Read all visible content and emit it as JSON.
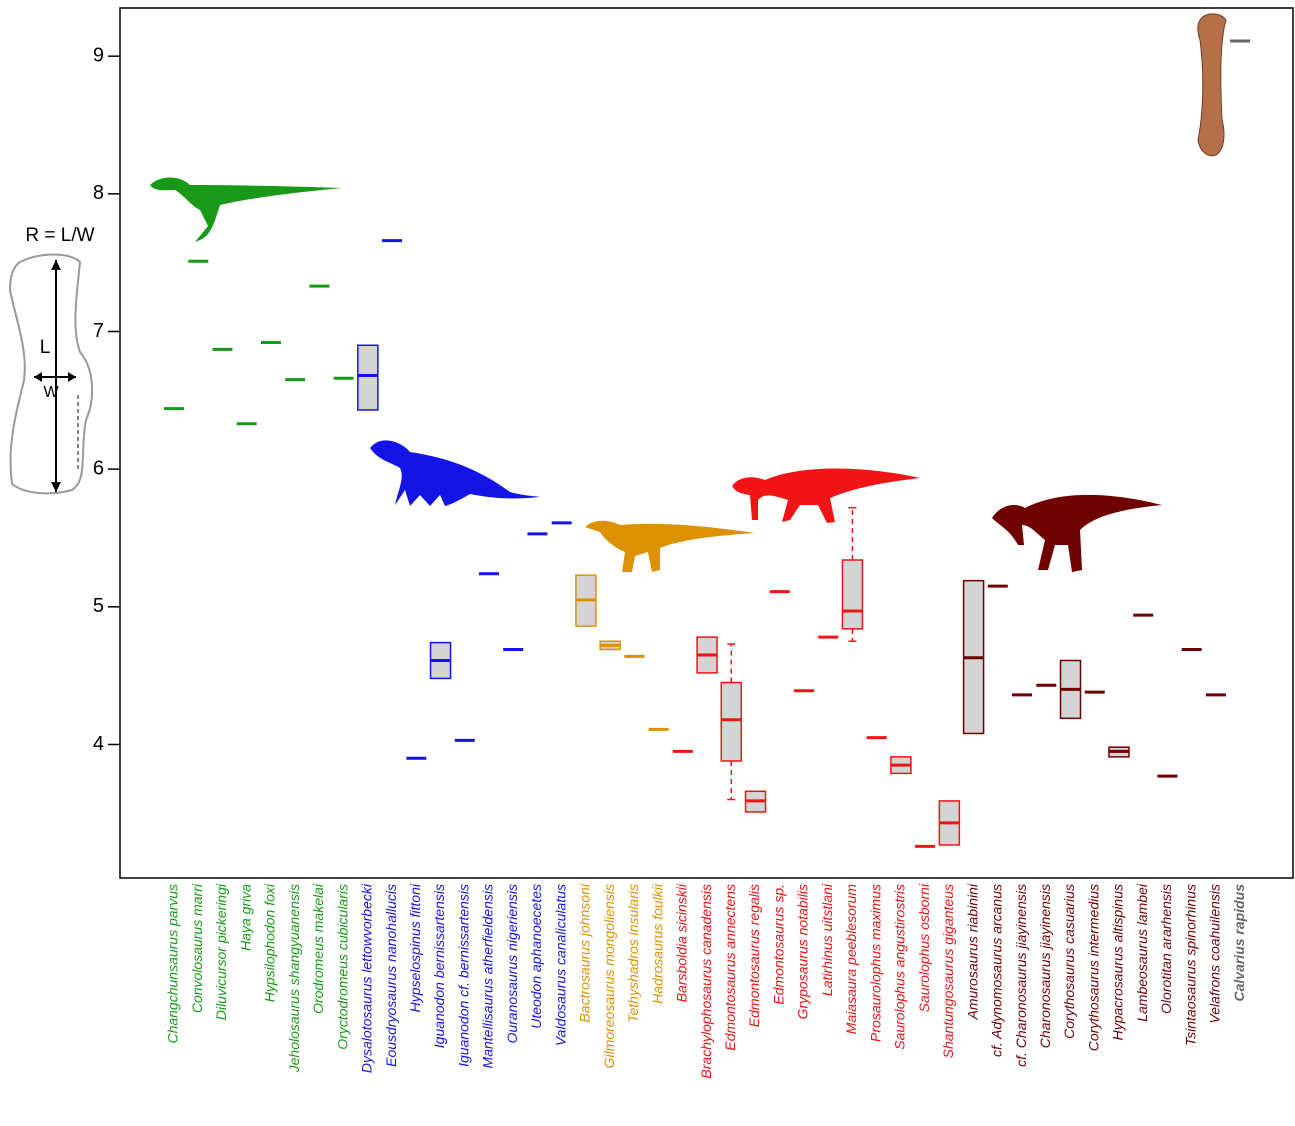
{
  "chart_data": {
    "type": "box",
    "annotations": {
      "ratio": "R = L/W",
      "length": "L",
      "width": "W"
    },
    "categories": [
      "Changchunsaurus parvus",
      "Convolosaurus marri",
      "Diluvicursor pickeringi",
      "Haya griva",
      "Hypsilophodon foxi",
      "Jeholosaurus shangyuanensis",
      "Orodromeus makelai",
      "Oryctodromeus cubicularis",
      "Dysalotosaurus lettowvorbecki",
      "Eousdryosaurus nanohallucis",
      "Hypselospinus fittoni",
      "Iguanodon bernissartensis",
      "Iguanodon cf. bernissartensis",
      "Mantellisaurus atherfieldensis",
      "Ouranosaurus nigeriensis",
      "Uteodon aphanoecetes",
      "Valdosaurus canaliculatus",
      "Bactrosaurus johnsoni",
      "Gilmoreosaurus mongoliensis",
      "Tethyshadros insularis",
      "Hadrosaurus foulkii",
      "Barsboldia sicinskii",
      "Brachylophosaurus canadensis",
      "Edmontosaurus annectens",
      "Edmontosaurus regalis",
      "Edmontosaurus sp.",
      "Gryposaurus notabilis",
      "Latirhinus uitstlani",
      "Maiasaura peeblesorum",
      "Prosaurolophus maximus",
      "Saurolophus angustirostris",
      "Saurolophus osborni",
      "Shantungosaurus giganteus",
      "Amurosaurus riabinini",
      "cf. Adynomosaurus arcanus",
      "cf. Charonosaurus jiayinensis",
      "Charonosaurus jiayinensis",
      "Corythosaurus casuarius",
      "Corythosaurus intermedius",
      "Hypacrosaurus altispinus",
      "Lambeosaurus lambei",
      "Olorotitan ararhensis",
      "Tsintaosaurus spinorhinus",
      "Velafrons coahuilensis",
      "Calvarius rapidus"
    ],
    "colors": [
      "#189a18",
      "#189a18",
      "#189a18",
      "#189a18",
      "#189a18",
      "#189a18",
      "#189a18",
      "#189a18",
      "#1414e6",
      "#1414e6",
      "#1414e6",
      "#1414e6",
      "#1414e6",
      "#1414e6",
      "#1414e6",
      "#1414e6",
      "#1414e6",
      "#dc9200",
      "#dc9200",
      "#dc9200",
      "#dc9200",
      "#f01414",
      "#f01414",
      "#f01414",
      "#f01414",
      "#f01414",
      "#f01414",
      "#f01414",
      "#f01414",
      "#f01414",
      "#f01414",
      "#f01414",
      "#f01414",
      "#700000",
      "#700000",
      "#700000",
      "#700000",
      "#700000",
      "#700000",
      "#700000",
      "#700000",
      "#700000",
      "#700000",
      "#700000",
      "#666666"
    ],
    "median": [
      6.44,
      7.51,
      6.87,
      6.33,
      6.92,
      6.65,
      7.33,
      6.66,
      6.68,
      7.66,
      3.9,
      4.61,
      4.03,
      5.24,
      4.69,
      5.53,
      5.61,
      5.05,
      4.72,
      4.64,
      4.11,
      3.95,
      4.65,
      4.18,
      3.59,
      5.11,
      4.39,
      4.78,
      4.97,
      4.05,
      3.85,
      3.26,
      3.43,
      4.63,
      5.15,
      4.36,
      4.43,
      4.4,
      4.38,
      3.95,
      4.94,
      3.77,
      4.69,
      4.36,
      9.11
    ],
    "q1": [
      null,
      null,
      null,
      null,
      null,
      null,
      null,
      null,
      6.43,
      null,
      null,
      4.48,
      null,
      null,
      null,
      null,
      null,
      4.86,
      4.69,
      null,
      null,
      null,
      4.52,
      3.88,
      3.51,
      null,
      null,
      null,
      4.84,
      null,
      3.79,
      null,
      3.27,
      4.08,
      null,
      null,
      null,
      4.19,
      null,
      3.91,
      null,
      null,
      null,
      null,
      null
    ],
    "q3": [
      null,
      null,
      null,
      null,
      null,
      null,
      null,
      null,
      6.9,
      null,
      null,
      4.74,
      null,
      null,
      null,
      null,
      null,
      5.23,
      4.75,
      null,
      null,
      null,
      4.78,
      4.45,
      3.66,
      null,
      null,
      null,
      5.34,
      null,
      3.91,
      null,
      3.59,
      5.19,
      null,
      null,
      null,
      4.61,
      null,
      3.98,
      null,
      null,
      null,
      null,
      null
    ],
    "whisker_low": [
      null,
      null,
      null,
      null,
      null,
      null,
      null,
      null,
      null,
      null,
      null,
      null,
      null,
      null,
      null,
      null,
      null,
      null,
      null,
      null,
      null,
      null,
      null,
      3.6,
      null,
      null,
      null,
      null,
      4.75,
      null,
      null,
      null,
      null,
      null,
      null,
      null,
      null,
      null,
      null,
      null,
      null,
      null,
      null,
      null,
      null
    ],
    "whisker_high": [
      null,
      null,
      null,
      null,
      null,
      null,
      null,
      null,
      null,
      null,
      null,
      null,
      null,
      null,
      null,
      null,
      null,
      null,
      null,
      null,
      null,
      null,
      null,
      4.73,
      null,
      null,
      null,
      null,
      5.72,
      null,
      null,
      null,
      null,
      null,
      null,
      null,
      null,
      null,
      null,
      null,
      null,
      null,
      null,
      null,
      null
    ],
    "ylim": [
      3.03,
      9.35
    ],
    "yticks": [
      4,
      5,
      6,
      7,
      8,
      9
    ]
  }
}
